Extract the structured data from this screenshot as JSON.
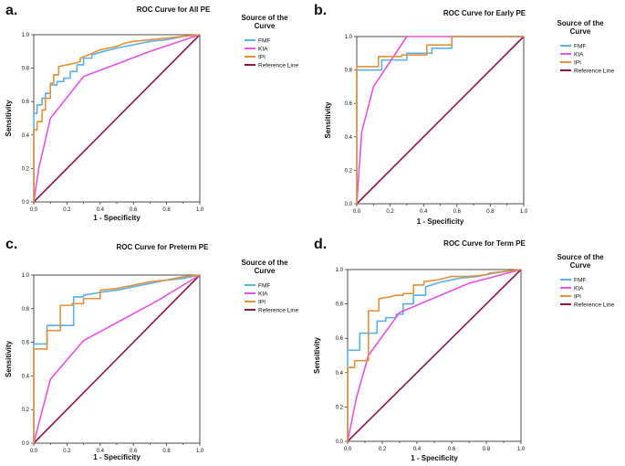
{
  "figure": {
    "x_axis_label": "1 - Specificity",
    "y_axis_label": "Sensitivity",
    "legend_title_line1": "Source of the",
    "legend_title_line2": "Curve"
  },
  "chart_data": [
    {
      "type": "line",
      "panel": "a.",
      "title": "ROC Curve for All PE",
      "xlabel": "1 - Specificity",
      "ylabel": "Sensitivity",
      "xlim": [
        0,
        1
      ],
      "ylim": [
        0,
        1
      ],
      "ticks": [
        "0.0",
        "0.2",
        "0.4",
        "0.6",
        "0.8",
        "1.0"
      ],
      "minor_x_ticks": [
        "0.1",
        "0.3",
        "0.5",
        "0.7",
        "0.9"
      ],
      "legend": [
        "FMF",
        "KIA",
        "IPI",
        "Reference Line"
      ],
      "series": [
        {
          "name": "FMF",
          "color": "#5aafe6",
          "x": [
            0,
            0,
            0.02,
            0.02,
            0.05,
            0.05,
            0.07,
            0.07,
            0.1,
            0.1,
            0.14,
            0.14,
            0.18,
            0.18,
            0.22,
            0.22,
            0.26,
            0.26,
            0.3,
            0.3,
            0.35,
            0.35,
            0.42,
            0.5,
            0.6,
            0.7,
            0.8,
            0.9,
            1
          ],
          "y": [
            0,
            0.53,
            0.53,
            0.58,
            0.58,
            0.62,
            0.62,
            0.65,
            0.65,
            0.7,
            0.7,
            0.72,
            0.72,
            0.74,
            0.74,
            0.78,
            0.78,
            0.82,
            0.82,
            0.86,
            0.86,
            0.88,
            0.9,
            0.92,
            0.94,
            0.96,
            0.97,
            0.99,
            1
          ]
        },
        {
          "name": "KIA",
          "color": "#e653e6",
          "x": [
            0,
            0.03,
            0.1,
            0.3,
            0.7,
            1
          ],
          "y": [
            0,
            0.2,
            0.5,
            0.75,
            0.9,
            1
          ]
        },
        {
          "name": "IPI",
          "color": "#e0913a",
          "x": [
            0,
            0,
            0.02,
            0.02,
            0.05,
            0.05,
            0.07,
            0.07,
            0.1,
            0.1,
            0.12,
            0.12,
            0.15,
            0.15,
            0.2,
            0.25,
            0.28,
            0.28,
            0.33,
            0.4,
            0.45,
            0.5,
            0.55,
            0.6,
            0.7,
            0.8,
            0.9,
            1
          ],
          "y": [
            0,
            0.43,
            0.43,
            0.48,
            0.48,
            0.55,
            0.55,
            0.62,
            0.62,
            0.71,
            0.71,
            0.76,
            0.76,
            0.81,
            0.82,
            0.83,
            0.84,
            0.86,
            0.88,
            0.91,
            0.92,
            0.93,
            0.95,
            0.96,
            0.97,
            0.98,
            0.99,
            1
          ]
        },
        {
          "name": "Reference Line",
          "color": "#8b1a4a",
          "x": [
            0,
            1
          ],
          "y": [
            0,
            1
          ]
        }
      ]
    },
    {
      "type": "line",
      "panel": "b.",
      "title": "ROC Curve for Early PE",
      "xlabel": "1 - Specificity",
      "ylabel": "Sensitivity",
      "xlim": [
        0,
        1
      ],
      "ylim": [
        0,
        1
      ],
      "ticks": [
        "0.0",
        "0.2",
        "0.4",
        "0.6",
        "0.8",
        "1.0"
      ],
      "minor_x_ticks": [
        "0.1",
        "0.3",
        "0.5",
        "0.7",
        "0.9"
      ],
      "legend": [
        "FMF",
        "KIA",
        "IPI",
        "Reference Line"
      ],
      "series": [
        {
          "name": "FMF",
          "color": "#5aafe6",
          "x": [
            0,
            0,
            0.15,
            0.15,
            0.3,
            0.3,
            0.45,
            0.45,
            0.57,
            0.57,
            1
          ],
          "y": [
            0,
            0.8,
            0.8,
            0.86,
            0.86,
            0.9,
            0.9,
            0.93,
            0.93,
            1,
            1
          ]
        },
        {
          "name": "KIA",
          "color": "#e653e6",
          "x": [
            0,
            0.03,
            0.1,
            0.3,
            1
          ],
          "y": [
            0,
            0.43,
            0.7,
            1,
            1
          ]
        },
        {
          "name": "IPI",
          "color": "#e0913a",
          "x": [
            0,
            0,
            0.13,
            0.13,
            0.27,
            0.27,
            0.42,
            0.42,
            0.57,
            0.57,
            1
          ],
          "y": [
            0,
            0.82,
            0.82,
            0.88,
            0.88,
            0.89,
            0.89,
            0.95,
            0.95,
            1,
            1
          ]
        },
        {
          "name": "Reference Line",
          "color": "#8b1a4a",
          "x": [
            0,
            1
          ],
          "y": [
            0,
            1
          ]
        }
      ]
    },
    {
      "type": "line",
      "panel": "c.",
      "title": "ROC Curve for Preterm PE",
      "xlabel": "1 - Specificity",
      "ylabel": "Sensitivity",
      "xlim": [
        0,
        1
      ],
      "ylim": [
        0,
        1
      ],
      "ticks": [
        "0.0",
        "0.2",
        "0.4",
        "0.6",
        "0.8",
        "1.0"
      ],
      "minor_x_ticks": [
        "0.1",
        "0.3",
        "0.5",
        "0.7",
        "0.9"
      ],
      "legend": [
        "FMF",
        "KIA",
        "IPI",
        "Reference Line"
      ],
      "series": [
        {
          "name": "FMF",
          "color": "#5aafe6",
          "x": [
            0,
            0,
            0.08,
            0.08,
            0.15,
            0.15,
            0.24,
            0.24,
            0.3,
            0.3,
            0.42,
            0.5,
            0.6,
            0.7,
            0.8,
            0.9,
            1
          ],
          "y": [
            0,
            0.59,
            0.59,
            0.7,
            0.7,
            0.7,
            0.7,
            0.87,
            0.87,
            0.88,
            0.9,
            0.91,
            0.93,
            0.95,
            0.97,
            0.98,
            1
          ]
        },
        {
          "name": "KIA",
          "color": "#e653e6",
          "x": [
            0,
            0.1,
            0.3,
            0.75,
            1
          ],
          "y": [
            0,
            0.38,
            0.61,
            0.85,
            1
          ]
        },
        {
          "name": "IPI",
          "color": "#e0913a",
          "x": [
            0,
            0,
            0.08,
            0.08,
            0.16,
            0.16,
            0.23,
            0.23,
            0.3,
            0.3,
            0.4,
            0.4,
            0.5,
            0.6,
            0.7,
            0.8,
            0.9,
            1
          ],
          "y": [
            0,
            0.56,
            0.56,
            0.67,
            0.67,
            0.82,
            0.82,
            0.83,
            0.83,
            0.86,
            0.86,
            0.91,
            0.92,
            0.94,
            0.96,
            0.97,
            0.99,
            1
          ]
        },
        {
          "name": "Reference Line",
          "color": "#8b1a4a",
          "x": [
            0,
            1
          ],
          "y": [
            0,
            1
          ]
        }
      ]
    },
    {
      "type": "line",
      "panel": "d.",
      "title": "ROC Curve for Term PE",
      "xlabel": "1 - Specificity",
      "ylabel": "Sensitivity",
      "xlim": [
        0,
        1
      ],
      "ylim": [
        0,
        1
      ],
      "ticks": [
        "0.0",
        "0.2",
        "0.4",
        "0.6",
        "0.8",
        "1.0"
      ],
      "minor_x_ticks": [
        "0.1",
        "0.3",
        "0.5",
        "0.7",
        "0.9"
      ],
      "legend": [
        "FMF",
        "KIA",
        "IPI",
        "Reference Line"
      ],
      "series": [
        {
          "name": "FMF",
          "color": "#5aafe6",
          "x": [
            0,
            0,
            0.07,
            0.07,
            0.12,
            0.12,
            0.17,
            0.17,
            0.22,
            0.22,
            0.28,
            0.28,
            0.32,
            0.32,
            0.38,
            0.38,
            0.45,
            0.45,
            0.55,
            0.65,
            0.75,
            0.85,
            1
          ],
          "y": [
            0,
            0.53,
            0.53,
            0.63,
            0.63,
            0.63,
            0.63,
            0.7,
            0.7,
            0.72,
            0.72,
            0.74,
            0.74,
            0.8,
            0.8,
            0.85,
            0.85,
            0.9,
            0.93,
            0.95,
            0.96,
            0.98,
            1
          ]
        },
        {
          "name": "KIA",
          "color": "#e653e6",
          "x": [
            0,
            0.05,
            0.12,
            0.3,
            0.7,
            1
          ],
          "y": [
            0,
            0.25,
            0.5,
            0.75,
            0.92,
            1
          ]
        },
        {
          "name": "IPI",
          "color": "#e0913a",
          "x": [
            0,
            0,
            0.04,
            0.04,
            0.08,
            0.08,
            0.12,
            0.12,
            0.18,
            0.18,
            0.24,
            0.28,
            0.32,
            0.32,
            0.38,
            0.38,
            0.44,
            0.44,
            0.52,
            0.6,
            0.7,
            0.8,
            0.82,
            1
          ],
          "y": [
            0,
            0.43,
            0.43,
            0.47,
            0.47,
            0.47,
            0.47,
            0.76,
            0.76,
            0.83,
            0.84,
            0.85,
            0.85,
            0.86,
            0.86,
            0.91,
            0.91,
            0.93,
            0.94,
            0.96,
            0.96,
            0.97,
            0.98,
            1
          ]
        },
        {
          "name": "Reference Line",
          "color": "#8b1a4a",
          "x": [
            0,
            1
          ],
          "y": [
            0,
            1
          ]
        }
      ]
    }
  ]
}
